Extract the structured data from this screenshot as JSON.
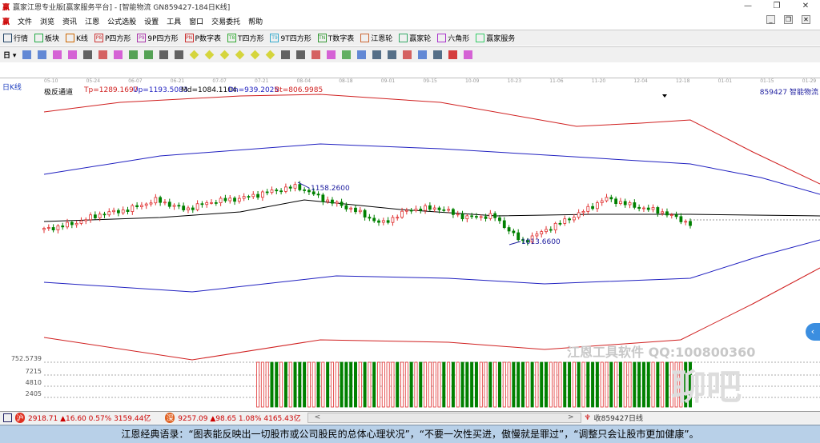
{
  "window": {
    "title": "赢家江恩专业版[赢家服务平台] - [智能物流  GN859427-184日K线]",
    "logo": "赢",
    "controls": [
      "—",
      "❐",
      "✕"
    ]
  },
  "menu": [
    "文件",
    "浏览",
    "资讯",
    "江恩",
    "公式选股",
    "设置",
    "工具",
    "窗口",
    "交易委托",
    "帮助"
  ],
  "toolbar1": [
    {
      "label": "行情",
      "icon": "grid-icon"
    },
    {
      "label": "板块",
      "icon": "blocks-icon"
    },
    {
      "label": "K线",
      "icon": "candles-icon"
    },
    {
      "label": "P四方形",
      "icon": "P8"
    },
    {
      "label": "9P四方形",
      "icon": "P9"
    },
    {
      "label": "P数字表",
      "icon": "PN"
    },
    {
      "label": "T四方形",
      "icon": "T8"
    },
    {
      "label": "9T四方形",
      "icon": "T9"
    },
    {
      "label": "T数字表",
      "icon": "TN"
    },
    {
      "label": "江恩轮",
      "icon": "wheel-icon"
    },
    {
      "label": "赢家轮",
      "icon": "wheel2-icon"
    },
    {
      "label": "六角形",
      "icon": "hexagon-icon"
    },
    {
      "label": "赢家服务",
      "icon": "dollar-icon"
    }
  ],
  "toolbar2_period": "日",
  "date_axis": [
    "05-10",
    "05-24",
    "06-07",
    "06-21",
    "07-07",
    "07-21",
    "08-04",
    "08-18",
    "09-01",
    "09-15",
    "10-09",
    "10-23",
    "11-06",
    "11-20",
    "12-04",
    "12-18",
    "01-01",
    "01-15",
    "01-29"
  ],
  "chart": {
    "period_label": "日K线",
    "indicator": "极反通道",
    "tp": "Tp=1289.1697",
    "up": "Up=1193.5083",
    "md": "Md=1084.1104",
    "dn": "Dn=939.2025",
    "bt": "Bt=806.9985",
    "stock": "859427 智能物流",
    "high_label": "1158.2600",
    "low_label": "1013.6600",
    "volume_axis": [
      "752.5739",
      "7215",
      "4810",
      "2405"
    ],
    "colors": {
      "up": "#e03030",
      "down": "#008000",
      "tp": "#d02020",
      "up_band": "#2020c0",
      "md": "#000000"
    }
  },
  "chart_data": {
    "type": "candlestick",
    "closes": [
      1046.7,
      1061.2,
      1086.0,
      1098.3,
      1123.1,
      1098.3,
      1119.0,
      1127.3,
      1143.8,
      1158.3,
      1123.1,
      1098.3,
      1061.2,
      1098.3,
      1102.5,
      1077.7,
      1081.8,
      1013.7,
      1050.8,
      1086.0,
      1127.3,
      1106.6,
      1092.1,
      1061.2
    ],
    "high": 1158.26,
    "low": 1013.66
  },
  "watermark": {
    "line1": "江恩工具软件  QQ:100800360",
    "line2": "聊吧"
  },
  "status": {
    "sh": "2918.71 ▲16.60 0.57% 3159.44亿",
    "sz": "9257.09 ▲98.65 1.08% 4165.43亿",
    "right": "收859427日线",
    "scroll_left": "<",
    "scroll_right": ">"
  },
  "ticker": "江恩经典语录：“图表能反映出一切股市或公司股民的总体心理状况”，“不要一次性买进，傲慢就是罪过”，“调整只会让股市更加健康”。"
}
